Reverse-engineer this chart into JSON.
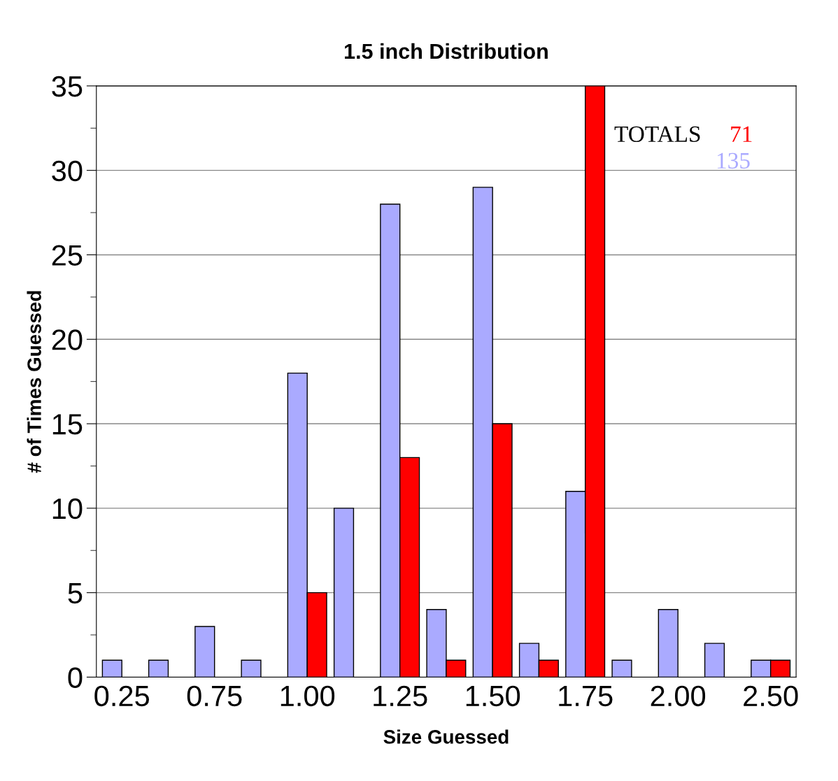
{
  "chart_data": {
    "type": "bar",
    "title": "1.5 inch Distribution",
    "xlabel": "Size Guessed",
    "ylabel": "# of Times Guessed",
    "categories": [
      "0.25",
      null,
      "0.75",
      null,
      "1.00",
      null,
      "1.25",
      null,
      "1.50",
      null,
      "1.75",
      null,
      "2.00",
      null,
      "2.50"
    ],
    "series": [
      {
        "color": "#aaaaff",
        "values": [
          1,
          1,
          3,
          1,
          18,
          10,
          28,
          4,
          29,
          2,
          11,
          1,
          4,
          2,
          1
        ]
      },
      {
        "color": "#ff0000",
        "values": [
          0,
          0,
          0,
          0,
          5,
          0,
          13,
          1,
          15,
          1,
          35,
          0,
          0,
          0,
          1
        ]
      }
    ],
    "ylim": [
      0,
      35
    ],
    "yticks": [
      0,
      5,
      10,
      15,
      20,
      25,
      30,
      35
    ],
    "grid": "y",
    "legend": false,
    "annotations": [
      "TOTALS",
      "71",
      "135"
    ]
  }
}
